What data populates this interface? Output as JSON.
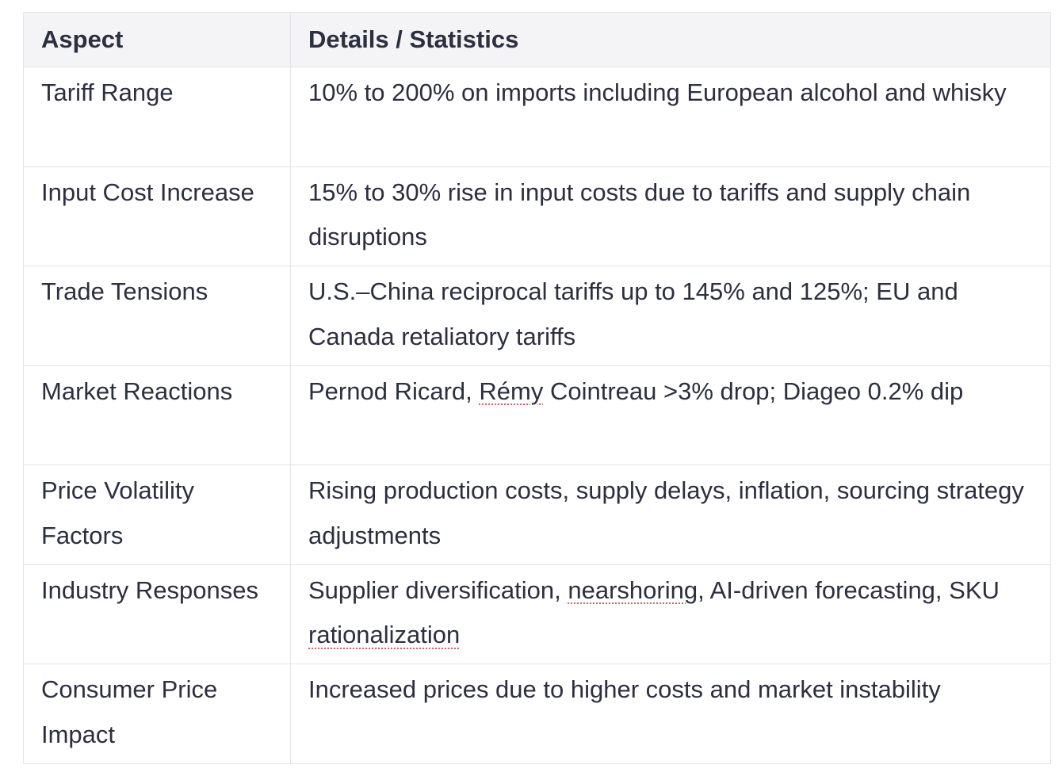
{
  "table": {
    "headers": [
      "Aspect",
      "Details / Statistics"
    ],
    "rows": [
      {
        "aspect": "Tariff Range",
        "details": "10% to 200% on imports including European alcohol and whisky"
      },
      {
        "aspect": "Input Cost Increase",
        "details": "15% to 30% rise in input costs due to tariffs and supply chain disruptions"
      },
      {
        "aspect": "Trade Tensions",
        "details": "U.S.–China reciprocal tariffs up to 145% and 125%; EU and Canada retaliatory tariffs"
      },
      {
        "aspect": "Market Reactions",
        "details_parts": [
          "Pernod Ricard, ",
          "Rémy",
          " Cointreau >3% drop; Diageo 0.2% dip"
        ]
      },
      {
        "aspect": "Price Volatility Factors",
        "details": "Rising production costs, supply delays, inflation, sourcing strategy adjustments"
      },
      {
        "aspect": "Industry Responses",
        "details_parts": [
          "Supplier diversification, ",
          "nearshoring",
          ", AI-driven forecasting, SKU ",
          "rationalization"
        ]
      },
      {
        "aspect": "Consumer Price Impact",
        "details": "Increased prices due to higher costs and market instability"
      }
    ]
  }
}
